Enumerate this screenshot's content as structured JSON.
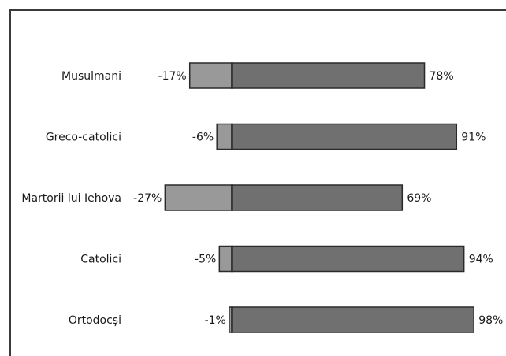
{
  "chart_data": {
    "type": "bar",
    "orientation": "horizontal",
    "stacked": "diverging",
    "categories": [
      "Musulmani",
      "Greco-catolici",
      "Martorii lui Iehova",
      "Catolici",
      "Ortodocși"
    ],
    "series": [
      {
        "color": "#999999",
        "values": [
          -17,
          -6,
          -27,
          -5,
          -1
        ],
        "labels": [
          "-17%",
          "-6%",
          "-27%",
          "-5%",
          "-1%"
        ]
      },
      {
        "color": "#707070",
        "values": [
          78,
          91,
          69,
          94,
          98
        ],
        "labels": [
          "78%",
          "91%",
          "69%",
          "94%",
          "98%"
        ]
      }
    ],
    "xlim": [
      -30,
      100
    ],
    "grid": false,
    "legend": "none"
  }
}
